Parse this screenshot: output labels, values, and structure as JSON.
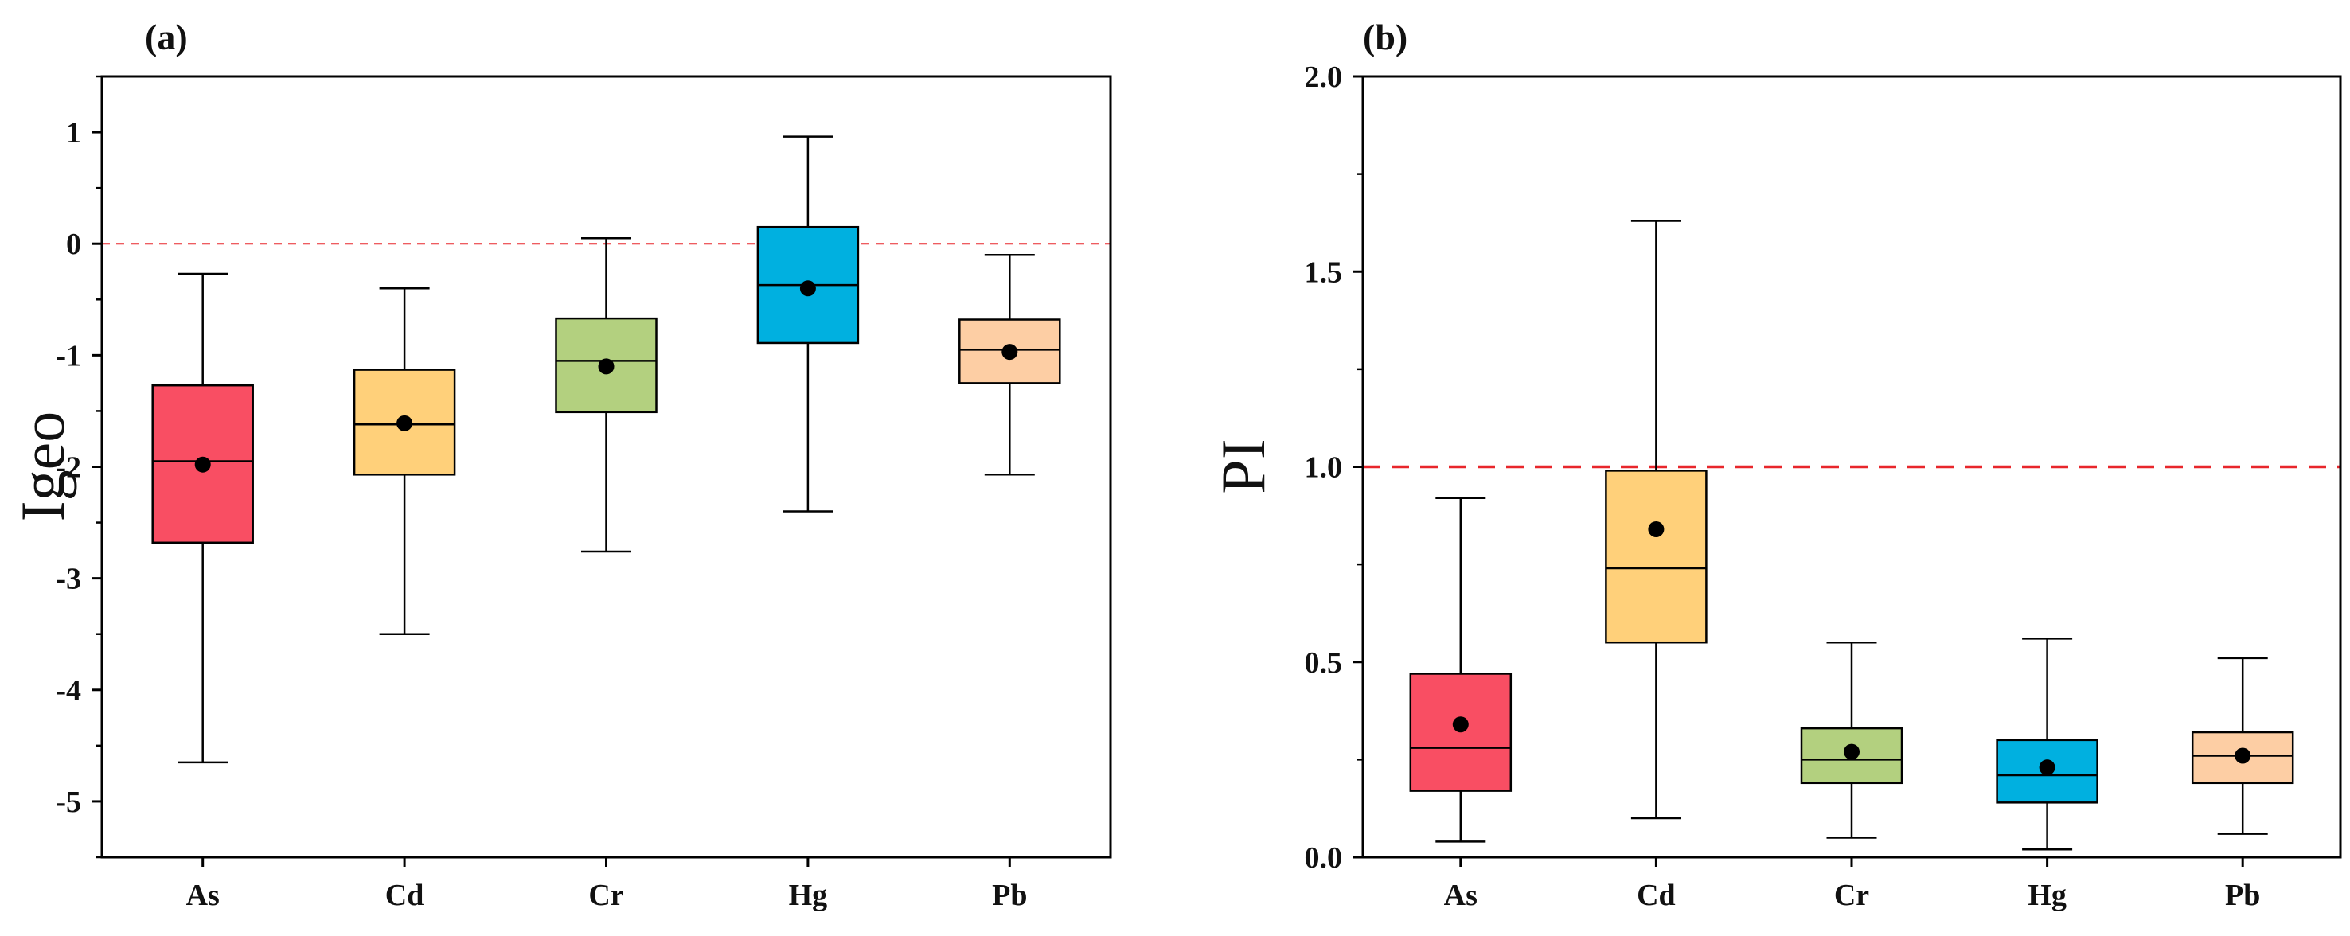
{
  "chart_data": [
    {
      "type": "box",
      "panel": "(a)",
      "title": "",
      "xlabel": "",
      "ylabel": "Igeo",
      "ylim": [
        -5.5,
        1.5
      ],
      "yticks": [
        1,
        0,
        -1,
        -2,
        -3,
        -4,
        -5
      ],
      "ytick_labels": [
        "1",
        "0",
        "-1",
        "-2",
        "-3",
        "-4",
        "-5"
      ],
      "reference_line": 0,
      "categories": [
        "As",
        "Cd",
        "Cr",
        "Hg",
        "Pb"
      ],
      "colors": [
        "#f94e63",
        "#ffd07a",
        "#b3d07f",
        "#00b0e0",
        "#fdcea4"
      ],
      "boxes": [
        {
          "min": -4.65,
          "q1": -2.68,
          "median": -1.95,
          "q3": -1.27,
          "max": -0.27,
          "mean": -1.98
        },
        {
          "min": -3.5,
          "q1": -2.07,
          "median": -1.62,
          "q3": -1.13,
          "max": -0.4,
          "mean": -1.61
        },
        {
          "min": -2.76,
          "q1": -1.51,
          "median": -1.05,
          "q3": -0.67,
          "max": 0.05,
          "mean": -1.1
        },
        {
          "min": -2.4,
          "q1": -0.89,
          "median": -0.37,
          "q3": 0.15,
          "max": 0.96,
          "mean": -0.4
        },
        {
          "min": -2.07,
          "q1": -1.25,
          "median": -0.95,
          "q3": -0.68,
          "max": -0.1,
          "mean": -0.97
        }
      ]
    },
    {
      "type": "box",
      "panel": "(b)",
      "title": "",
      "xlabel": "",
      "ylabel": "PI",
      "ylim": [
        0.0,
        2.0
      ],
      "yticks": [
        0.0,
        0.5,
        1.0,
        1.5,
        2.0
      ],
      "ytick_labels": [
        "0.0",
        "0.5",
        "1.0",
        "1.5",
        "2.0"
      ],
      "reference_line": 1.0,
      "categories": [
        "As",
        "Cd",
        "Cr",
        "Hg",
        "Pb"
      ],
      "colors": [
        "#f94e63",
        "#ffd07a",
        "#b3d07f",
        "#00b0e0",
        "#fdcea4"
      ],
      "boxes": [
        {
          "min": 0.04,
          "q1": 0.17,
          "median": 0.28,
          "q3": 0.47,
          "max": 0.92,
          "mean": 0.34
        },
        {
          "min": 0.1,
          "q1": 0.55,
          "median": 0.74,
          "q3": 0.99,
          "max": 1.63,
          "mean": 0.84
        },
        {
          "min": 0.05,
          "q1": 0.19,
          "median": 0.25,
          "q3": 0.33,
          "max": 0.55,
          "mean": 0.27
        },
        {
          "min": 0.02,
          "q1": 0.14,
          "median": 0.21,
          "q3": 0.3,
          "max": 0.56,
          "mean": 0.23
        },
        {
          "min": 0.06,
          "q1": 0.19,
          "median": 0.26,
          "q3": 0.32,
          "max": 0.51,
          "mean": 0.26
        }
      ]
    }
  ]
}
